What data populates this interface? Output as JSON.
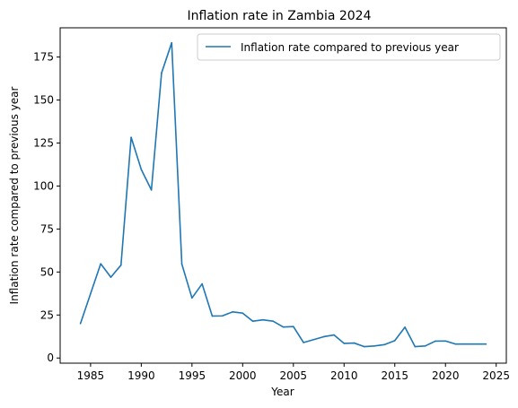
{
  "chart_data": {
    "type": "line",
    "title": "Inflation rate in Zambia 2024",
    "xlabel": "Year",
    "ylabel": "Inflation rate compared to previous year",
    "xlim": [
      1982,
      2026
    ],
    "ylim": [
      -3,
      192
    ],
    "x_ticks": [
      1985,
      1990,
      1995,
      2000,
      2005,
      2010,
      2015,
      2020,
      2025
    ],
    "y_ticks": [
      0,
      25,
      50,
      75,
      100,
      125,
      150,
      175
    ],
    "grid": false,
    "legend_position": "top-right",
    "series": [
      {
        "name": "Inflation rate compared to previous year",
        "color": "#1f77b4",
        "x": [
          1984,
          1985,
          1986,
          1987,
          1988,
          1989,
          1990,
          1991,
          1992,
          1993,
          1994,
          1995,
          1996,
          1997,
          1998,
          1999,
          2000,
          2001,
          2002,
          2003,
          2004,
          2005,
          2006,
          2007,
          2008,
          2009,
          2010,
          2011,
          2012,
          2013,
          2014,
          2015,
          2016,
          2017,
          2018,
          2019,
          2020,
          2021,
          2022,
          2023,
          2024
        ],
        "y": [
          20,
          37.4,
          54.8,
          47,
          54,
          128.3,
          109.6,
          97.7,
          165.7,
          183.3,
          54.6,
          34.9,
          43.1,
          24.4,
          24.5,
          26.8,
          26.1,
          21.4,
          22.2,
          21.4,
          18,
          18.3,
          9,
          10.7,
          12.4,
          13.4,
          8.5,
          8.7,
          6.6,
          7,
          7.8,
          10.1,
          17.9,
          6.6,
          7,
          9.8,
          9.9,
          8.1,
          8.1,
          8.1,
          8.1
        ]
      }
    ]
  }
}
